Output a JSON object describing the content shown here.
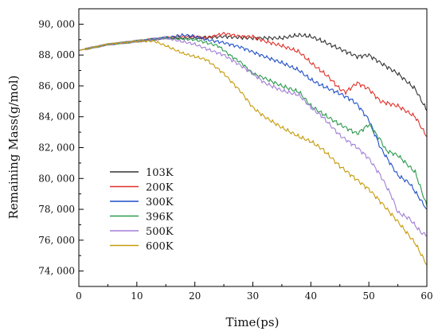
{
  "chart_data": {
    "type": "line",
    "title": "",
    "xlabel": "Time(ps)",
    "ylabel": "Remaining Mass(g/mol)",
    "xlim": [
      0,
      60
    ],
    "ylim": [
      73000,
      91000
    ],
    "x_ticks": [
      0,
      10,
      20,
      30,
      40,
      50,
      60
    ],
    "x_tick_labels": [
      "0",
      "10",
      "20",
      "30",
      "40",
      "50",
      "60"
    ],
    "y_ticks": [
      74000,
      76000,
      78000,
      80000,
      82000,
      84000,
      86000,
      88000,
      90000
    ],
    "y_tick_labels": [
      "74, 000",
      "76, 000",
      "78, 000",
      "80, 000",
      "82, 000",
      "84, 000",
      "86, 000",
      "88, 000",
      "90, 000"
    ],
    "grid": false,
    "legend_position": "lower-left",
    "series": [
      {
        "name": "103K",
        "color": "#333333",
        "x": [
          0,
          5,
          10,
          15,
          20,
          25,
          30,
          35,
          38,
          40,
          42,
          45,
          48,
          50,
          52,
          55,
          58,
          60
        ],
        "values": [
          88300,
          88700,
          88900,
          89100,
          89100,
          89200,
          89100,
          89100,
          89300,
          89200,
          88900,
          88400,
          87900,
          88000,
          87500,
          86800,
          85800,
          84400
        ]
      },
      {
        "name": "200K",
        "color": "#e0312a",
        "x": [
          0,
          5,
          10,
          15,
          18,
          20,
          22,
          25,
          28,
          30,
          32,
          35,
          38,
          40,
          43,
          45,
          46,
          48,
          50,
          52,
          55,
          58,
          60
        ],
        "values": [
          88300,
          88700,
          88900,
          89100,
          89200,
          89200,
          89100,
          89400,
          89200,
          89200,
          88900,
          88600,
          88200,
          87500,
          86600,
          85800,
          85600,
          86200,
          85800,
          85000,
          84700,
          84000,
          82700
        ]
      },
      {
        "name": "300K",
        "color": "#1f4fc8",
        "x": [
          0,
          5,
          10,
          15,
          18,
          20,
          22,
          25,
          28,
          30,
          32,
          35,
          38,
          40,
          42,
          45,
          47,
          48,
          50,
          52,
          55,
          57,
          60
        ],
        "values": [
          88300,
          88700,
          88900,
          89100,
          89300,
          89200,
          89000,
          88800,
          88500,
          88200,
          87900,
          87500,
          87000,
          86400,
          86000,
          85500,
          85100,
          84800,
          83800,
          82000,
          80200,
          79700,
          78000
        ]
      },
      {
        "name": "396K",
        "color": "#2b9a4c",
        "x": [
          0,
          5,
          10,
          15,
          20,
          24,
          26,
          28,
          30,
          32,
          35,
          38,
          40,
          42,
          45,
          48,
          50,
          52,
          53,
          55,
          58,
          60
        ],
        "values": [
          88300,
          88700,
          88900,
          89100,
          89000,
          88600,
          88000,
          87500,
          86800,
          86500,
          86000,
          85600,
          84700,
          84200,
          83500,
          82900,
          83500,
          82500,
          81800,
          81500,
          80400,
          78200
        ]
      },
      {
        "name": "500K",
        "color": "#a37fd6",
        "x": [
          0,
          5,
          10,
          15,
          20,
          22,
          25,
          28,
          30,
          32,
          35,
          38,
          40,
          42,
          45,
          48,
          50,
          52,
          54,
          55,
          57,
          59,
          60
        ],
        "values": [
          88300,
          88700,
          88900,
          89100,
          88700,
          88400,
          88000,
          87300,
          86800,
          86200,
          85700,
          85400,
          84600,
          84000,
          82800,
          82000,
          81300,
          80200,
          78800,
          77800,
          77400,
          76500,
          76300
        ]
      },
      {
        "name": "600K",
        "color": "#c79b0a",
        "x": [
          0,
          5,
          10,
          13,
          15,
          18,
          20,
          22,
          25,
          28,
          30,
          32,
          35,
          38,
          40,
          42,
          45,
          48,
          50,
          52,
          55,
          58,
          60
        ],
        "values": [
          88300,
          88700,
          88900,
          88900,
          88600,
          88100,
          87900,
          87700,
          86800,
          85600,
          84600,
          84000,
          83300,
          82700,
          82400,
          81900,
          80800,
          79900,
          79300,
          78500,
          77200,
          75800,
          74400
        ]
      }
    ]
  }
}
